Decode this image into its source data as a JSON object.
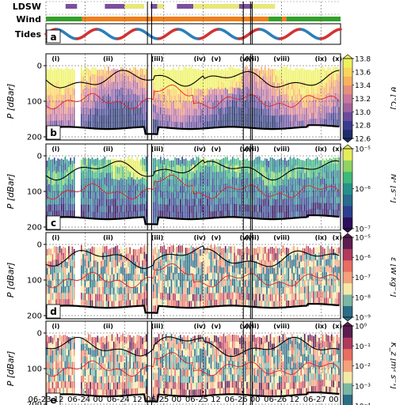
{
  "chart_data": {
    "type": "heatmap",
    "x_tick_labels": [
      "06-23 12",
      "06-24 00",
      "06-24 12",
      "06-25 00",
      "06-25 12",
      "06-26 00",
      "06-26 12",
      "06-27 00"
    ],
    "x_ticks_hours": [
      0,
      12,
      24,
      36,
      48,
      60,
      72,
      84
    ],
    "x_range_hours": [
      0,
      90
    ],
    "event_labels": [
      "(i)",
      "(ii)",
      "(iii)",
      "(iv)",
      "(v)",
      "(vi)",
      "(vii)",
      "(viii)",
      "(ix)",
      "(x)"
    ],
    "event_lines_hours": [
      31,
      32.3,
      60.3,
      62.5,
      63
    ],
    "top_panel": {
      "panel_letter": "a",
      "rows": [
        {
          "label": "LDSW",
          "color": "#e0e060",
          "segments": [
            {
              "start": 6,
              "end": 9.5,
              "color": "#7b4e9e"
            },
            {
              "start": 18,
              "end": 24,
              "color": "#7b4e9e"
            },
            {
              "start": 24,
              "end": 30,
              "color": "#e8e87a"
            },
            {
              "start": 32,
              "end": 34,
              "color": "#7b4e9e"
            },
            {
              "start": 34,
              "end": 36,
              "color": "#e8e87a"
            },
            {
              "start": 40,
              "end": 45,
              "color": "#7b4e9e"
            },
            {
              "start": 45,
              "end": 59,
              "color": "#e8e87a"
            },
            {
              "start": 59,
              "end": 63,
              "color": "#7b4e9e"
            },
            {
              "start": 63,
              "end": 70,
              "color": "#e8e87a"
            }
          ]
        },
        {
          "label": "Wind",
          "segments": [
            {
              "start": 0,
              "end": 11,
              "color": "#33a02c"
            },
            {
              "start": 11,
              "end": 68,
              "color": "#f07f1a"
            },
            {
              "start": 68,
              "end": 90,
              "color": "#33a02c"
            },
            {
              "start": 72,
              "end": 73.5,
              "color": "#f07f1a"
            }
          ]
        },
        {
          "label": "Tides",
          "period_hours": 12.42,
          "phase_hours": 0,
          "colors": [
            "#d33333",
            "#2d7fb8"
          ]
        }
      ]
    },
    "panels": [
      {
        "letter": "b",
        "ylabel": "P [dBar]",
        "ylim": [
          200,
          0
        ],
        "yticks": [
          0,
          100,
          200
        ],
        "colorbar_label": "θ [°C]",
        "colorbar_ticks": [
          "13.8",
          "13.6",
          "13.4",
          "13.2",
          "13.0",
          "12.8",
          "12.6"
        ],
        "colormap": [
          "#1f2d6b",
          "#3b3b8e",
          "#6a4c9c",
          "#a0649e",
          "#c9779d",
          "#e58f7f",
          "#f7b15f",
          "#f9d55a",
          "#eef25c"
        ]
      },
      {
        "letter": "c",
        "ylabel": "P [dBar]",
        "ylim": [
          200,
          0
        ],
        "yticks": [
          0,
          100,
          200
        ],
        "colorbar_label": "N² [s⁻²]",
        "colorbar_ticks": [
          "10⁻⁵",
          "10⁻⁶",
          "10⁻⁷"
        ],
        "colormap": [
          "#2c0f5c",
          "#2d3f8d",
          "#2a6b8e",
          "#25928a",
          "#3fb87a",
          "#8fd362",
          "#e6ed5a"
        ]
      },
      {
        "letter": "d",
        "ylabel": "P [dBar]",
        "ylim": [
          200,
          0
        ],
        "yticks": [
          0,
          100,
          200
        ],
        "colorbar_label": "ε [W kg⁻¹]",
        "colorbar_ticks": [
          "10⁻⁵",
          "10⁻⁶",
          "10⁻⁷",
          "10⁻⁸",
          "10⁻⁹"
        ],
        "colormap": [
          "#2b6e86",
          "#7cb7a4",
          "#f5e9a8",
          "#f3a27c",
          "#e86e62",
          "#b13a5e",
          "#5b1e4f"
        ]
      },
      {
        "letter": "e",
        "ylabel": "P [dBar]",
        "ylim": [
          200,
          0
        ],
        "yticks": [
          0,
          100,
          200
        ],
        "colorbar_label": "K_z [m² s⁻¹]",
        "colorbar_ticks": [
          "10⁰",
          "10⁻¹",
          "10⁻²",
          "10⁻³",
          "10⁻⁴"
        ],
        "colormap": [
          "#2b6e86",
          "#7cb7a4",
          "#f5e9a8",
          "#f3a27c",
          "#e86e62",
          "#b13a5e",
          "#5b1e4f"
        ]
      }
    ]
  }
}
